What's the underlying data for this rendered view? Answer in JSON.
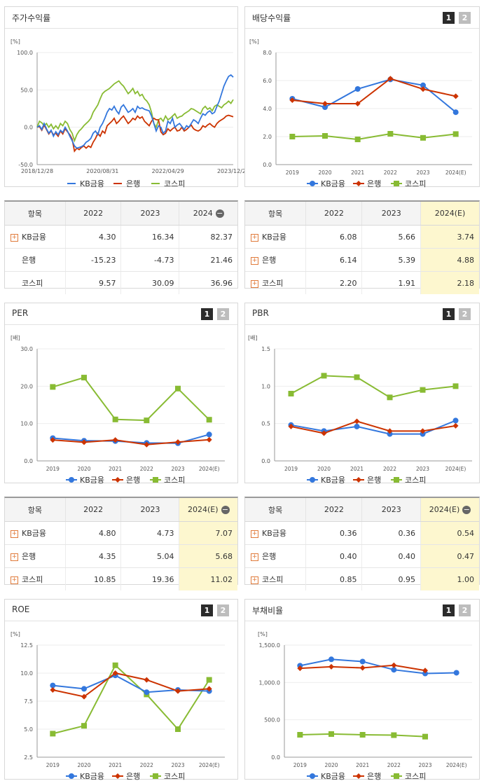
{
  "panels": [
    {
      "id": "stock",
      "title": "주가수익률",
      "has_pager": false
    },
    {
      "id": "dividend",
      "title": "배당수익률",
      "has_pager": true
    },
    {
      "id": "per",
      "title": "PER",
      "has_pager": true
    },
    {
      "id": "pbr",
      "title": "PBR",
      "has_pager": true
    },
    {
      "id": "roe",
      "title": "ROE",
      "has_pager": true
    },
    {
      "id": "debt",
      "title": "부채비율",
      "has_pager": true
    }
  ],
  "pager": {
    "p1": "1",
    "p2": "2"
  },
  "legend": [
    "KB금융",
    "은행",
    "코스피"
  ],
  "colors": {
    "kb": "#3377dd",
    "bank": "#cc3300",
    "kospi": "#88bb33",
    "axis": "#999999",
    "grid": "#eeeeee"
  },
  "chart_data": [
    {
      "id": "stock",
      "type": "line",
      "unit": "[%]",
      "yticks": [
        "100.0",
        "50.0",
        "0.0",
        "-50.0"
      ],
      "ylim": [
        -50,
        100
      ],
      "xticks": [
        "2018/12/28",
        "2020/08/31",
        "2022/04/29",
        "2023/12/28"
      ],
      "series": [
        {
          "name": "KB금융",
          "values": [
            0,
            2,
            -3,
            5,
            -2,
            -8,
            -4,
            -12,
            -6,
            -10,
            -4,
            -7,
            0,
            -5,
            -12,
            -18,
            -25,
            -28,
            -27,
            -26,
            -24,
            -20,
            -18,
            -15,
            -8,
            -5,
            -10,
            0,
            5,
            12,
            20,
            25,
            23,
            28,
            22,
            18,
            27,
            30,
            25,
            20,
            22,
            25,
            20,
            28,
            25,
            26,
            24,
            23,
            22,
            15,
            5,
            -5,
            2,
            0,
            -8,
            -5,
            8,
            5,
            12,
            0,
            3,
            5,
            1,
            -3,
            2,
            0,
            5,
            10,
            8,
            5,
            12,
            18,
            16,
            20,
            22,
            18,
            20,
            28,
            35,
            45,
            55,
            62,
            68,
            70,
            67
          ]
        },
        {
          "name": "은행",
          "values": [
            0,
            1,
            -4,
            3,
            -3,
            -9,
            -5,
            -10,
            -8,
            -12,
            -5,
            -9,
            -2,
            -6,
            -10,
            -16,
            -32,
            -28,
            -30,
            -27,
            -25,
            -28,
            -25,
            -27,
            -20,
            -15,
            -8,
            -12,
            -5,
            -8,
            2,
            5,
            8,
            12,
            5,
            8,
            12,
            15,
            10,
            5,
            8,
            12,
            10,
            15,
            12,
            14,
            8,
            5,
            2,
            8,
            12,
            10,
            10,
            -6,
            -10,
            -8,
            -2,
            -5,
            -2,
            0,
            -5,
            -4,
            0,
            -5,
            -3,
            0,
            3,
            -2,
            -4,
            -5,
            -3,
            2,
            0,
            3,
            5,
            2,
            0,
            5,
            8,
            10,
            12,
            15,
            16,
            15,
            14
          ]
        },
        {
          "name": "코스피",
          "values": [
            0,
            8,
            6,
            2,
            5,
            0,
            4,
            -2,
            2,
            -2,
            5,
            2,
            8,
            5,
            -3,
            -8,
            -18,
            -10,
            -5,
            -2,
            2,
            5,
            8,
            12,
            20,
            25,
            30,
            38,
            45,
            48,
            50,
            52,
            55,
            58,
            60,
            62,
            58,
            55,
            50,
            45,
            48,
            52,
            45,
            48,
            42,
            44,
            38,
            35,
            30,
            20,
            5,
            0,
            10,
            12,
            8,
            15,
            10,
            12,
            15,
            18,
            12,
            14,
            15,
            18,
            20,
            22,
            25,
            24,
            22,
            20,
            18,
            25,
            28,
            24,
            26,
            22,
            28,
            30,
            28,
            26,
            30,
            32,
            35,
            32,
            37
          ]
        }
      ]
    },
    {
      "id": "dividend",
      "type": "line",
      "unit": "[%]",
      "yticks": [
        "8.0",
        "6.0",
        "4.0",
        "2.0",
        "0.0"
      ],
      "ylim": [
        0,
        8
      ],
      "categories": [
        "2019",
        "2020",
        "2021",
        "2022",
        "2023",
        "2024(E)"
      ],
      "series": [
        {
          "name": "KB금융",
          "values": [
            4.7,
            4.1,
            5.4,
            6.08,
            5.66,
            3.74
          ]
        },
        {
          "name": "은행",
          "values": [
            4.6,
            4.35,
            4.35,
            6.14,
            5.39,
            4.88
          ]
        },
        {
          "name": "코스피",
          "values": [
            2.0,
            2.05,
            1.8,
            2.2,
            1.91,
            2.18
          ]
        }
      ]
    },
    {
      "id": "per",
      "type": "line",
      "unit": "[배]",
      "yticks": [
        "30.0",
        "20.0",
        "10.0",
        "0.0"
      ],
      "ylim": [
        0,
        30
      ],
      "categories": [
        "2019",
        "2020",
        "2021",
        "2022",
        "2023",
        "2024(E)"
      ],
      "series": [
        {
          "name": "KB금융",
          "values": [
            6.1,
            5.4,
            5.3,
            4.8,
            4.73,
            7.07
          ]
        },
        {
          "name": "은행",
          "values": [
            5.6,
            5.0,
            5.6,
            4.35,
            5.04,
            5.68
          ]
        },
        {
          "name": "코스피",
          "values": [
            19.8,
            22.3,
            11.1,
            10.85,
            19.36,
            11.02
          ]
        }
      ]
    },
    {
      "id": "pbr",
      "type": "line",
      "unit": "[배]",
      "yticks": [
        "1.5",
        "1.0",
        "0.5",
        "0.0"
      ],
      "ylim": [
        0,
        1.5
      ],
      "categories": [
        "2019",
        "2020",
        "2021",
        "2022",
        "2023",
        "2024(E)"
      ],
      "series": [
        {
          "name": "KB금융",
          "values": [
            0.48,
            0.4,
            0.46,
            0.36,
            0.36,
            0.54
          ]
        },
        {
          "name": "은행",
          "values": [
            0.46,
            0.37,
            0.53,
            0.4,
            0.4,
            0.47
          ]
        },
        {
          "name": "코스피",
          "values": [
            0.9,
            1.14,
            1.12,
            0.85,
            0.95,
            1.0
          ]
        }
      ]
    },
    {
      "id": "roe",
      "type": "line",
      "unit": "[%]",
      "yticks": [
        "12.5",
        "10.0",
        "7.5",
        "5.0",
        "2.5"
      ],
      "ylim": [
        2.5,
        12.5
      ],
      "categories": [
        "2019",
        "2020",
        "2021",
        "2022",
        "2023",
        "2024(E)"
      ],
      "series": [
        {
          "name": "KB금융",
          "values": [
            8.9,
            8.6,
            9.8,
            8.3,
            8.5,
            8.4
          ]
        },
        {
          "name": "은행",
          "values": [
            8.5,
            7.9,
            10.0,
            9.4,
            8.4,
            8.6
          ]
        },
        {
          "name": "코스피",
          "values": [
            4.6,
            5.3,
            10.7,
            8.1,
            5.0,
            9.4
          ]
        }
      ]
    },
    {
      "id": "debt",
      "type": "line",
      "unit": "[%]",
      "yticks": [
        "1,500.0",
        "1,000.0",
        "500.0",
        "0.0"
      ],
      "ylim": [
        0,
        1500
      ],
      "categories": [
        "2019",
        "2020",
        "2021",
        "2022",
        "2023",
        "2024(E)"
      ],
      "series": [
        {
          "name": "KB금융",
          "values": [
            1225,
            1310,
            1280,
            1170,
            1120,
            1130
          ]
        },
        {
          "name": "은행",
          "values": [
            1190,
            1210,
            1195,
            1230,
            1160,
            null
          ]
        },
        {
          "name": "코스피",
          "values": [
            300,
            310,
            300,
            295,
            275,
            null
          ]
        }
      ]
    }
  ],
  "tables": {
    "stock": {
      "headers": [
        "항목",
        "2022",
        "2023",
        "2024"
      ],
      "has_minus": true,
      "highlight_last": false,
      "rows": [
        {
          "label": "KB금융",
          "plus": true,
          "values": [
            "4.30",
            "16.34",
            "82.37"
          ]
        },
        {
          "label": "은행",
          "plus": false,
          "values": [
            "-15.23",
            "-4.73",
            "21.46"
          ]
        },
        {
          "label": "코스피",
          "plus": false,
          "values": [
            "9.57",
            "30.09",
            "36.96"
          ]
        }
      ]
    },
    "dividend": {
      "headers": [
        "항목",
        "2022",
        "2023",
        "2024(E)"
      ],
      "has_minus": false,
      "highlight_last": true,
      "rows": [
        {
          "label": "KB금융",
          "plus": true,
          "values": [
            "6.08",
            "5.66",
            "3.74"
          ]
        },
        {
          "label": "은행",
          "plus": true,
          "values": [
            "6.14",
            "5.39",
            "4.88"
          ]
        },
        {
          "label": "코스피",
          "plus": true,
          "values": [
            "2.20",
            "1.91",
            "2.18"
          ]
        }
      ]
    },
    "per": {
      "headers": [
        "항목",
        "2022",
        "2023",
        "2024(E)"
      ],
      "has_minus": true,
      "highlight_last": true,
      "rows": [
        {
          "label": "KB금융",
          "plus": true,
          "values": [
            "4.80",
            "4.73",
            "7.07"
          ]
        },
        {
          "label": "은행",
          "plus": true,
          "values": [
            "4.35",
            "5.04",
            "5.68"
          ]
        },
        {
          "label": "코스피",
          "plus": true,
          "values": [
            "10.85",
            "19.36",
            "11.02"
          ]
        }
      ]
    },
    "pbr": {
      "headers": [
        "항목",
        "2022",
        "2023",
        "2024(E)"
      ],
      "has_minus": true,
      "highlight_last": true,
      "rows": [
        {
          "label": "KB금융",
          "plus": true,
          "values": [
            "0.36",
            "0.36",
            "0.54"
          ]
        },
        {
          "label": "은행",
          "plus": true,
          "values": [
            "0.40",
            "0.40",
            "0.47"
          ]
        },
        {
          "label": "코스피",
          "plus": true,
          "values": [
            "0.85",
            "0.95",
            "1.00"
          ]
        }
      ]
    }
  }
}
